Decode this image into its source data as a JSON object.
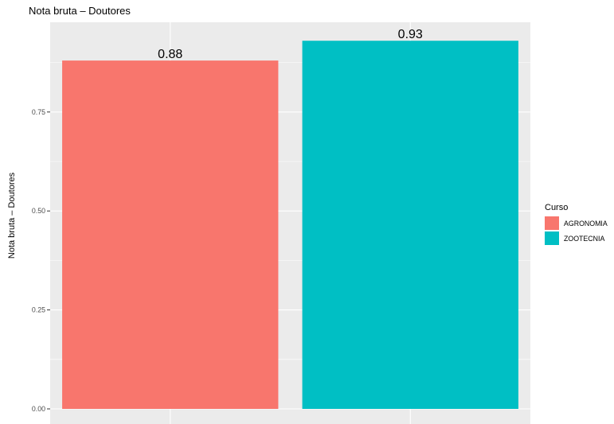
{
  "chart_data": {
    "type": "bar",
    "title": "Nota bruta – Doutores",
    "xlabel": "",
    "ylabel": "Nota bruta – Doutores",
    "categories": [
      "AGRONOMIA",
      "ZOOTECNIA"
    ],
    "values": [
      0.88,
      0.93
    ],
    "data_labels": [
      "0.88",
      "0.93"
    ],
    "colors": [
      "#F8766D",
      "#00BFC4"
    ],
    "ylim": [
      0,
      0.93
    ],
    "yticks": [
      0,
      0.25,
      0.5,
      0.75
    ],
    "ytick_labels": [
      "0.00",
      "0.25",
      "0.50",
      "0.75"
    ],
    "grid": true,
    "panel_background": "#EBEBEB",
    "legend": {
      "title": "Curso",
      "placement": "right",
      "entries": [
        "AGRONOMIA",
        "ZOOTECNIA"
      ]
    }
  }
}
